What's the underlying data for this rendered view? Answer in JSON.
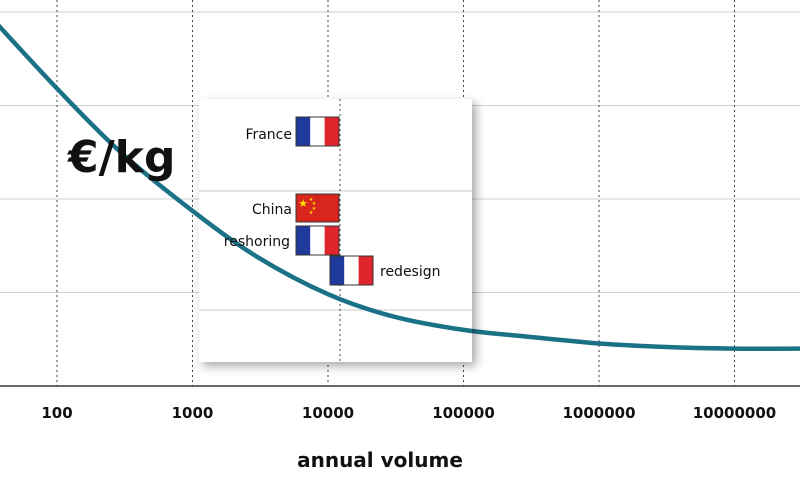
{
  "chart_data": {
    "type": "line",
    "xscale": "log",
    "ylabel": "€/kg",
    "xlabel": "annual volume",
    "x_ticks": [
      "100",
      "1000",
      "10000",
      "100000",
      "1000000",
      "10000000"
    ],
    "grid": true,
    "series": [
      {
        "color": "#1b7287",
        "x": [
          30,
          100,
          300,
          1000,
          3000,
          10000,
          30000,
          100000,
          300000,
          1000000,
          3000000,
          10000000,
          50000000
        ],
        "y": [
          2.2,
          1.75,
          1.37,
          1.03,
          0.76,
          0.54,
          0.41,
          0.33,
          0.29,
          0.25,
          0.23,
          0.22,
          0.22
        ]
      }
    ],
    "inset": {
      "markers": [
        {
          "label": "France",
          "flag": "france-flag"
        },
        {
          "label": "China",
          "flag": "china-flag"
        },
        {
          "label": "reshoring",
          "flag": "france-flag"
        },
        {
          "label": "redesign",
          "flag": "france-flag"
        }
      ]
    }
  },
  "colors": {
    "curve": "#1b7287",
    "france_blue": "#1e3a9a",
    "france_red": "#e0262d",
    "china_red": "#d9261c",
    "china_star": "#ffde00"
  }
}
